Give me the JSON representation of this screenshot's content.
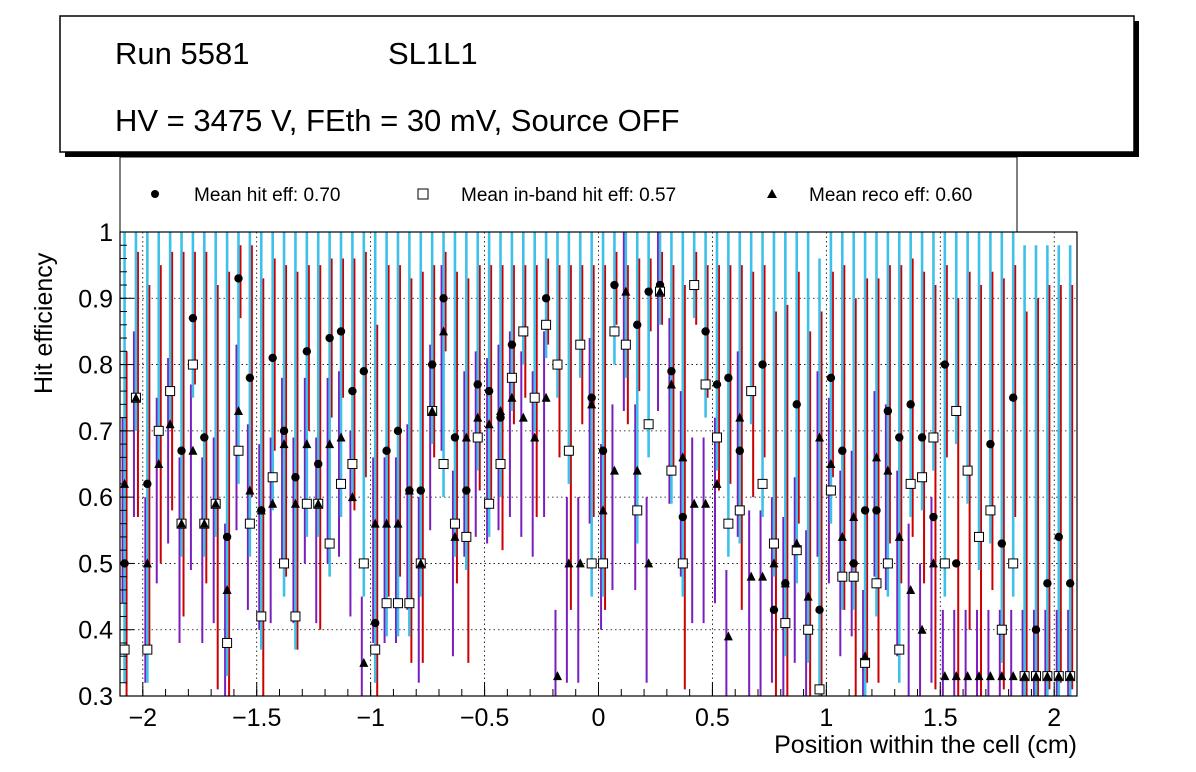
{
  "info_box": {
    "run_label": "Run 5581",
    "layer_label": "SL1L1",
    "conditions": "HV = 3475 V, FEth = 30 mV, Source OFF"
  },
  "legend": {
    "hit_label": "Mean hit  eff: 0.70",
    "inband_label": "Mean in-band hit eff: 0.57",
    "reco_label": "Mean reco eff: 0.60"
  },
  "colors": {
    "hit_error": "#cc0000",
    "inband_error": "#3fc0e8",
    "reco_error": "#7a1fbf",
    "marker": "#000000",
    "grid": "#000000"
  },
  "chart_data": {
    "type": "scatter",
    "title": "",
    "xlabel": "Position within the cell (cm)",
    "ylabel": "Hit efficiency",
    "xlim": [
      -2.1,
      2.1
    ],
    "ylim": [
      0.3,
      1.0
    ],
    "xticks": [
      "−2",
      "−1.5",
      "−1",
      "−0.5",
      "0",
      "0.5",
      "1",
      "1.5",
      "2"
    ],
    "xtick_values": [
      -2,
      -1.5,
      -1,
      -0.5,
      0,
      0.5,
      1,
      1.5,
      2
    ],
    "yticks": [
      "0.3",
      "0.4",
      "0.5",
      "0.6",
      "0.7",
      "0.8",
      "0.9",
      "1"
    ],
    "ytick_values": [
      0.3,
      0.4,
      0.5,
      0.6,
      0.7,
      0.8,
      0.9,
      1.0
    ],
    "grid": true,
    "bin_x": [
      -2.08,
      -2.03,
      -1.98,
      -1.93,
      -1.88,
      -1.83,
      -1.78,
      -1.73,
      -1.68,
      -1.63,
      -1.58,
      -1.53,
      -1.48,
      -1.43,
      -1.38,
      -1.33,
      -1.28,
      -1.23,
      -1.18,
      -1.13,
      -1.08,
      -1.03,
      -0.98,
      -0.93,
      -0.88,
      -0.83,
      -0.78,
      -0.73,
      -0.68,
      -0.63,
      -0.58,
      -0.53,
      -0.48,
      -0.43,
      -0.38,
      -0.33,
      -0.28,
      -0.23,
      -0.18,
      -0.13,
      -0.08,
      -0.03,
      0.02,
      0.07,
      0.12,
      0.17,
      0.22,
      0.27,
      0.32,
      0.37,
      0.42,
      0.47,
      0.52,
      0.57,
      0.62,
      0.67,
      0.72,
      0.77,
      0.82,
      0.87,
      0.92,
      0.97,
      1.02,
      1.07,
      1.12,
      1.17,
      1.22,
      1.27,
      1.32,
      1.37,
      1.42,
      1.47,
      1.52,
      1.57,
      1.62,
      1.67,
      1.72,
      1.77,
      1.82,
      1.87,
      1.92,
      1.97,
      2.02,
      2.07
    ],
    "series": [
      {
        "name": "Mean hit eff",
        "marker": "circle",
        "mean": 0.7,
        "values": [
          0.5,
          0.75,
          0.62,
          0.7,
          0.76,
          0.67,
          0.87,
          0.69,
          0.59,
          0.54,
          0.93,
          0.78,
          0.58,
          0.81,
          0.7,
          0.63,
          0.82,
          0.65,
          0.84,
          0.85,
          0.76,
          0.79,
          0.41,
          0.67,
          0.7,
          0.61,
          0.61,
          0.8,
          0.9,
          0.69,
          0.61,
          0.77,
          0.76,
          0.72,
          0.83,
          0.85,
          0.75,
          0.9,
          0.8,
          0.67,
          0.83,
          0.75,
          0.67,
          0.92,
          0.83,
          0.86,
          0.91,
          0.92,
          0.79,
          0.57,
          0.92,
          0.85,
          0.77,
          0.78,
          0.67,
          0.76,
          0.8,
          0.43,
          0.47,
          0.74,
          0.4,
          0.43,
          0.78,
          0.67,
          0.5,
          0.58,
          0.58,
          0.73,
          0.69,
          0.74,
          0.69,
          0.57,
          0.8,
          0.5,
          0.64,
          0.54,
          0.68,
          0.53,
          0.75,
          0.33,
          0.4,
          0.47,
          0.54,
          0.47
        ],
        "err_up": [
          0.32,
          0.22,
          0.3,
          0.25,
          0.21,
          0.3,
          0.1,
          0.28,
          0.33,
          0.4,
          0.05,
          0.2,
          0.35,
          0.15,
          0.25,
          0.31,
          0.13,
          0.3,
          0.12,
          0.11,
          0.2,
          0.18,
          0.45,
          0.28,
          0.25,
          0.32,
          0.33,
          0.15,
          0.07,
          0.25,
          0.32,
          0.18,
          0.19,
          0.23,
          0.12,
          0.1,
          0.2,
          0.06,
          0.15,
          0.28,
          0.12,
          0.2,
          0.28,
          0.05,
          0.12,
          0.1,
          0.05,
          0.05,
          0.16,
          0.35,
          0.05,
          0.1,
          0.18,
          0.17,
          0.28,
          0.18,
          0.15,
          0.45,
          0.42,
          0.2,
          0.45,
          0.45,
          0.16,
          0.28,
          0.4,
          0.35,
          0.35,
          0.22,
          0.26,
          0.22,
          0.25,
          0.35,
          0.15,
          0.4,
          0.3,
          0.38,
          0.26,
          0.4,
          0.2,
          0.55,
          0.5,
          0.45,
          0.38,
          0.45
        ],
        "err_down": [
          0.25,
          0.18,
          0.25,
          0.2,
          0.18,
          0.25,
          0.1,
          0.22,
          0.28,
          0.3,
          0.06,
          0.18,
          0.28,
          0.14,
          0.22,
          0.26,
          0.12,
          0.25,
          0.12,
          0.1,
          0.18,
          0.16,
          0.25,
          0.22,
          0.22,
          0.26,
          0.26,
          0.14,
          0.08,
          0.22,
          0.26,
          0.16,
          0.17,
          0.2,
          0.12,
          0.1,
          0.18,
          0.07,
          0.14,
          0.24,
          0.12,
          0.18,
          0.24,
          0.06,
          0.12,
          0.1,
          0.06,
          0.06,
          0.15,
          0.26,
          0.06,
          0.1,
          0.16,
          0.16,
          0.24,
          0.16,
          0.14,
          0.2,
          0.22,
          0.18,
          0.12,
          0.14,
          0.15,
          0.24,
          0.2,
          0.26,
          0.26,
          0.2,
          0.22,
          0.2,
          0.22,
          0.26,
          0.14,
          0.2,
          0.24,
          0.24,
          0.22,
          0.22,
          0.18,
          0.05,
          0.12,
          0.16,
          0.22,
          0.16
        ]
      },
      {
        "name": "Mean in-band hit eff",
        "marker": "open-square",
        "mean": 0.57,
        "values": [
          0.37,
          0.75,
          0.37,
          0.7,
          0.76,
          0.56,
          0.8,
          0.56,
          0.59,
          0.38,
          0.67,
          0.56,
          0.42,
          0.63,
          0.5,
          0.42,
          0.59,
          0.59,
          0.53,
          0.62,
          0.65,
          0.5,
          0.37,
          0.44,
          0.44,
          0.44,
          0.5,
          0.73,
          0.65,
          0.56,
          0.54,
          0.69,
          0.59,
          0.65,
          0.78,
          0.85,
          0.75,
          0.86,
          0.8,
          0.67,
          0.83,
          0.5,
          0.5,
          0.85,
          0.83,
          0.58,
          0.71,
          0.91,
          0.64,
          0.5,
          0.92,
          0.77,
          0.69,
          0.56,
          0.58,
          0.76,
          0.62,
          0.53,
          0.41,
          0.52,
          0.4,
          0.31,
          0.61,
          0.48,
          0.48,
          0.35,
          0.47,
          0.5,
          0.37,
          0.62,
          0.63,
          0.69,
          0.5,
          0.73,
          0.64,
          0.54,
          0.58,
          0.4,
          0.5,
          0.33,
          0.33,
          0.33,
          0.33,
          0.33
        ]
      },
      {
        "name": "Mean reco eff",
        "marker": "triangle",
        "mean": 0.6,
        "values": [
          0.62,
          0.75,
          0.5,
          0.65,
          0.71,
          0.56,
          0.67,
          0.56,
          0.59,
          0.46,
          0.73,
          0.61,
          0.58,
          0.59,
          0.68,
          0.59,
          0.68,
          0.59,
          0.68,
          0.69,
          0.6,
          0.35,
          0.56,
          0.56,
          0.56,
          0.61,
          0.5,
          0.73,
          0.85,
          0.54,
          0.69,
          0.72,
          0.71,
          0.73,
          0.75,
          0.72,
          0.69,
          0.75,
          0.33,
          0.5,
          0.5,
          0.74,
          0.58,
          0.64,
          0.91,
          0.64,
          0.5,
          0.91,
          0.77,
          0.66,
          0.59,
          0.59,
          0.62,
          0.39,
          0.72,
          0.48,
          0.48,
          0.5,
          0.47,
          0.53,
          0.45,
          0.69,
          0.65,
          0.54,
          0.57,
          0.36,
          0.66,
          0.64,
          0.54,
          0.46,
          0.4,
          0.5,
          0.33,
          0.33,
          0.33,
          0.33,
          0.33,
          0.33,
          0.33,
          0.33,
          0.33,
          0.33,
          0.33,
          0.33
        ]
      }
    ]
  }
}
